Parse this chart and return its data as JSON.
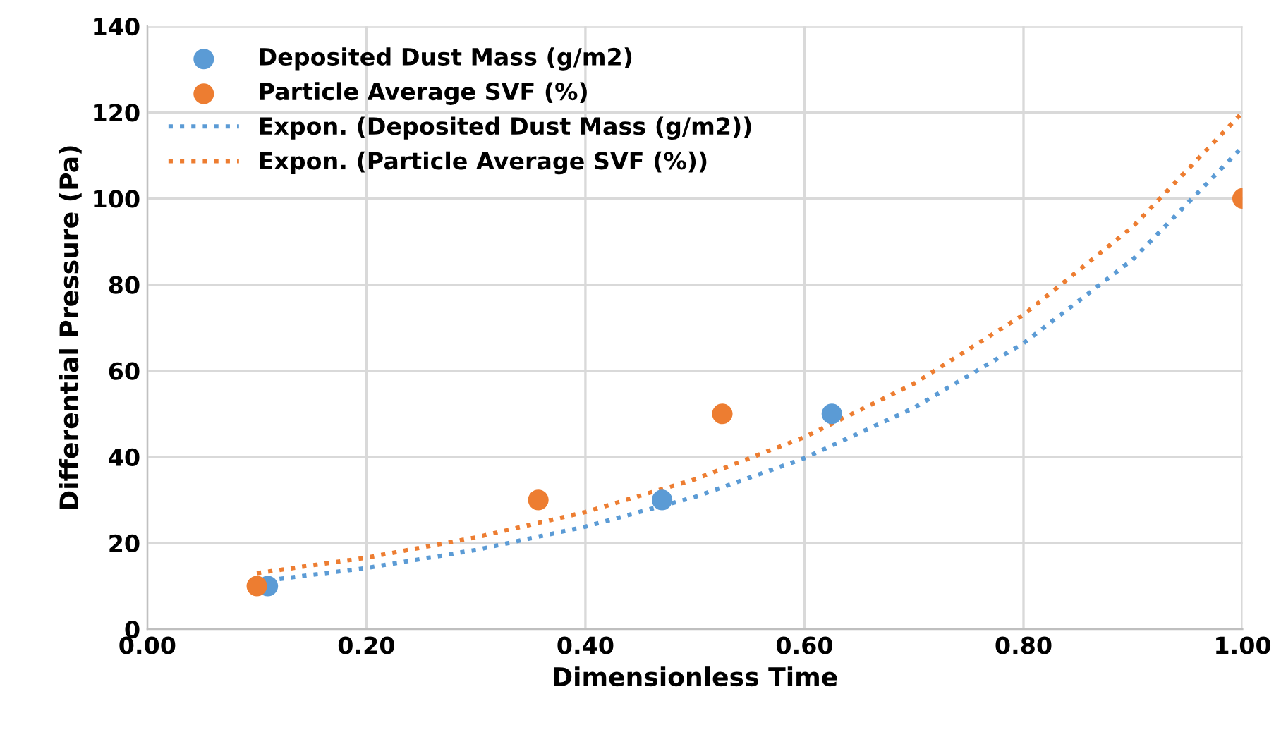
{
  "chart_data": {
    "type": "scatter",
    "xlabel": "Dimensionless Time",
    "ylabel": "Differential Pressure (Pa)",
    "xlim": [
      0,
      1
    ],
    "ylim": [
      0,
      140
    ],
    "xticks": [
      {
        "value": 0,
        "label": "0.00"
      },
      {
        "value": 0.2,
        "label": "0.20"
      },
      {
        "value": 0.4,
        "label": "0.40"
      },
      {
        "value": 0.6,
        "label": "0.60"
      },
      {
        "value": 0.8,
        "label": "0.80"
      },
      {
        "value": 1,
        "label": "1.00"
      }
    ],
    "yticks": [
      0,
      20,
      40,
      60,
      80,
      100,
      120,
      140
    ],
    "grid": true,
    "legend": "top left",
    "series": [
      {
        "name": "Deposited Dust Mass (g/m2)",
        "color": "#5b9bd5",
        "marker": "circle",
        "x": [
          0.11,
          0.47,
          0.625
        ],
        "values": [
          10,
          30,
          50
        ]
      },
      {
        "name": "Particle Average SVF (%)",
        "color": "#ed7d31",
        "marker": "circle",
        "x": [
          0.1,
          0.357,
          0.525,
          1.0
        ],
        "values": [
          10,
          30,
          50,
          100
        ]
      },
      {
        "name": "Expon. (Deposited Dust Mass (g/m2))",
        "type": "line",
        "line_style": "dotted",
        "color": "#5b9bd5",
        "x": [
          0.1,
          0.2,
          0.3,
          0.4,
          0.5,
          0.6,
          0.7,
          0.8,
          0.9,
          1.0
        ],
        "values": [
          11,
          14.2,
          18.4,
          23.8,
          30.7,
          39.7,
          51.4,
          66.4,
          85.9,
          112
        ]
      },
      {
        "name": "Expon. (Particle Average SVF (%))",
        "type": "line",
        "line_style": "dotted",
        "color": "#ed7d31",
        "x": [
          0.1,
          0.2,
          0.3,
          0.4,
          0.5,
          0.6,
          0.7,
          0.8,
          0.9,
          1.0
        ],
        "values": [
          13,
          16.6,
          21.3,
          27.2,
          34.8,
          44.6,
          57,
          73,
          93.5,
          120
        ]
      }
    ]
  }
}
